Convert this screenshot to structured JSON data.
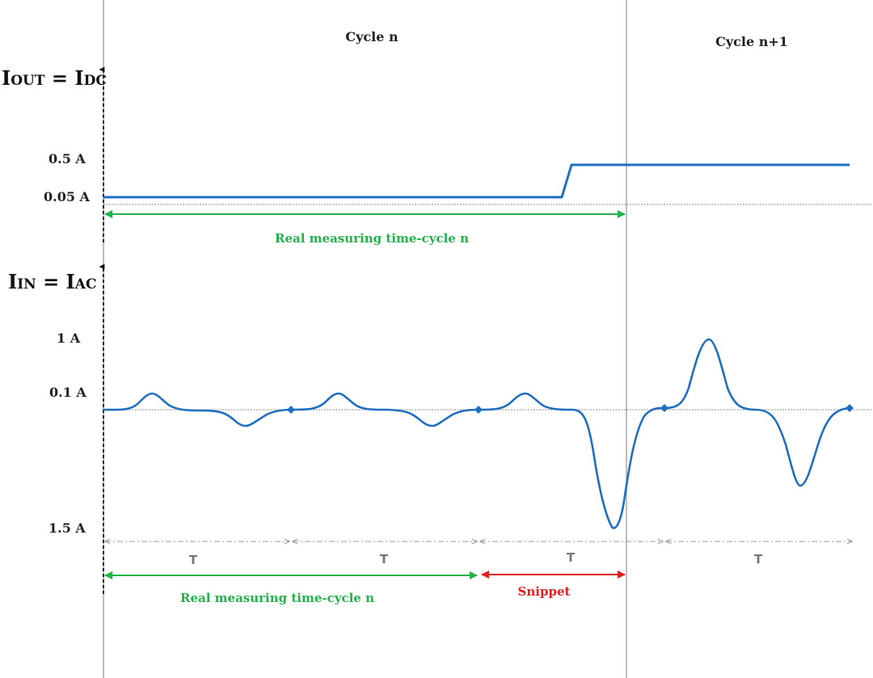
{
  "cycles": {
    "left": "Cycle n",
    "right": "Cycle n+1"
  },
  "output_axis": {
    "title_main": "I",
    "title_sub": "OUT",
    "title_eq": " = I",
    "title_sub2": "DC",
    "tick_high": "0.5 A",
    "tick_low": "0.05 A"
  },
  "input_axis": {
    "title_main": "I",
    "title_sub": "IN",
    "title_eq": " = I",
    "title_sub2": "AC",
    "tick_1a": "1 A",
    "tick_01a": "0.1 A",
    "tick_15a": "1.5 A"
  },
  "period_label": "T",
  "annotations": {
    "top_measure": "Real measuring time-cycle n",
    "bottom_measure": "Real measuring time-cycle n",
    "snippet": "Snippet"
  },
  "colors": {
    "signal": "#1f6fc0",
    "measure_arrow": "#22b24c",
    "snippet_arrow": "#e02020",
    "divider": "#a8a8a8"
  }
}
